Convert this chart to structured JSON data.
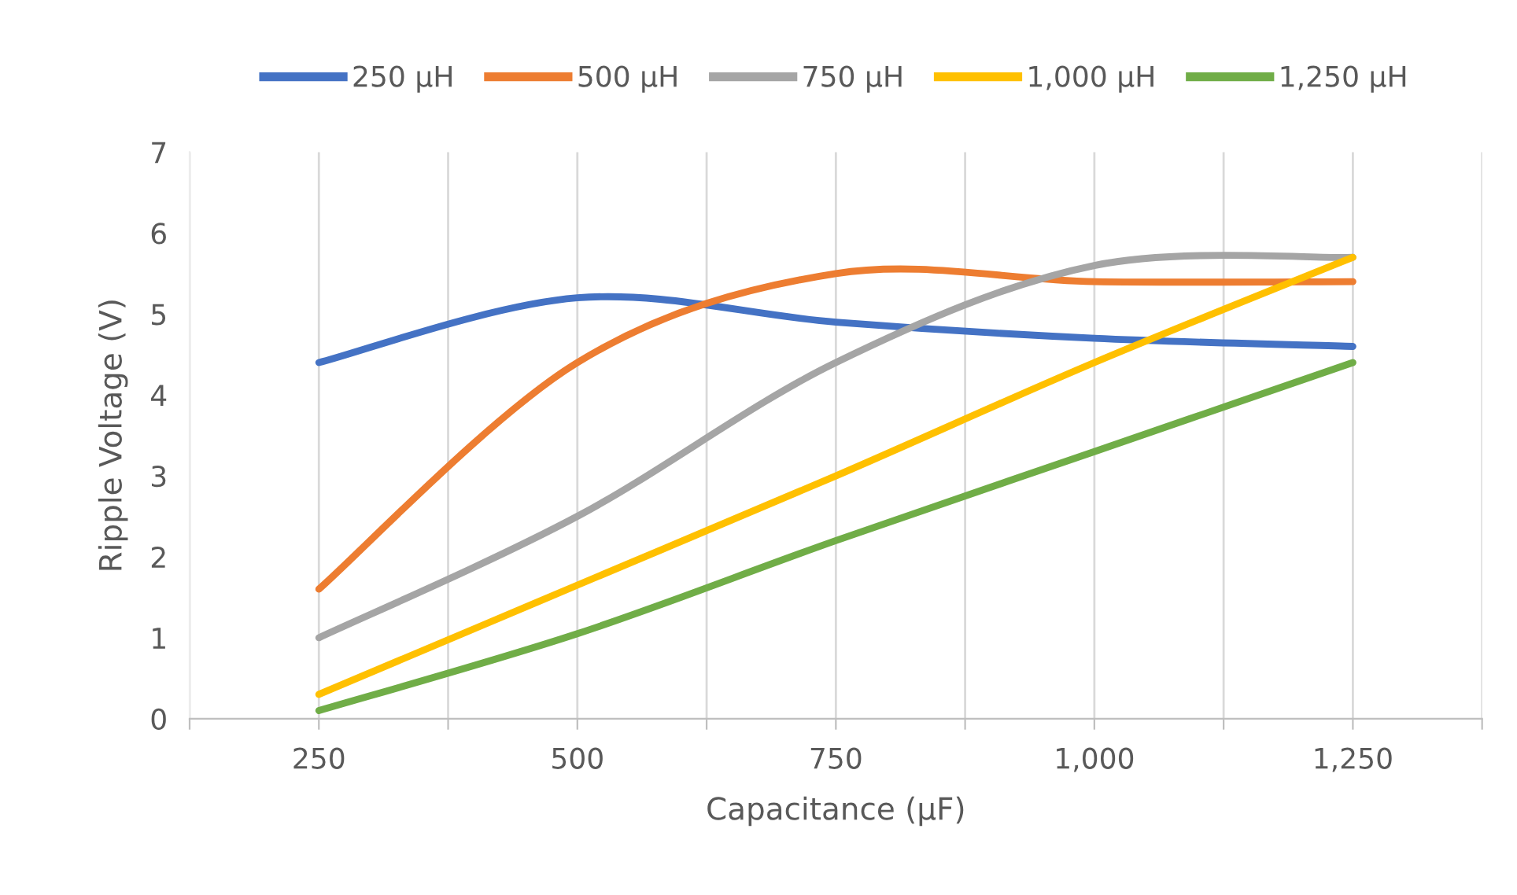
{
  "chart_data": {
    "type": "line",
    "xlabel": "Capacitance (µF)",
    "ylabel": "Ripple Voltage (V)",
    "x": [
      250,
      500,
      750,
      1000,
      1250
    ],
    "xlim": [
      125,
      1375
    ],
    "xticks": [
      {
        "value": 125,
        "label": null
      },
      250,
      {
        "value": 375,
        "label": null
      },
      {
        "value": 500,
        "label": "500"
      },
      {
        "value": 625,
        "label": null
      },
      {
        "value": 750,
        "label": "750"
      },
      {
        "value": 875,
        "label": null
      },
      {
        "value": 1000,
        "label": "1,000"
      },
      {
        "value": 1125,
        "label": null
      },
      {
        "value": 1250,
        "label": "1,250"
      },
      {
        "value": 1375,
        "label": null
      }
    ],
    "ylim": [
      0,
      7
    ],
    "yticks": [
      0,
      1,
      2,
      3,
      4,
      5,
      6,
      7
    ],
    "grid": "x",
    "legend": "top",
    "marker": "none",
    "line_style": "solid",
    "series": [
      {
        "name": "250 µH",
        "color": "#4472c4",
        "values": [
          4.4,
          5.2,
          4.9,
          4.7,
          4.6
        ]
      },
      {
        "name": "500 µH",
        "color": "#ed7d31",
        "values": [
          1.6,
          4.4,
          5.5,
          5.4,
          5.4
        ]
      },
      {
        "name": "750 µH",
        "color": "#a5a5a5",
        "values": [
          1.0,
          2.5,
          4.4,
          5.6,
          5.7
        ]
      },
      {
        "name": "1,000 µH",
        "color": "#ffc000",
        "values": [
          0.3,
          1.65,
          3.0,
          4.4,
          5.7
        ]
      },
      {
        "name": "1,250 µH",
        "color": "#70ad47",
        "values": [
          0.1,
          1.05,
          2.2,
          3.3,
          4.4
        ]
      }
    ]
  }
}
